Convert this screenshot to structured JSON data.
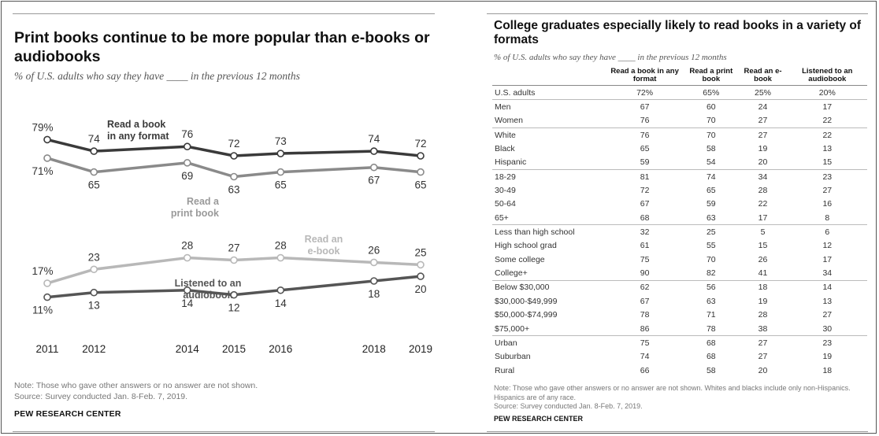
{
  "left": {
    "title": "Print books continue to be more popular than e-books or audiobooks",
    "subtitle": "% of U.S. adults who say they have ____ in the previous 12 months",
    "note": "Note: Those who gave other answers or no answer are not shown.",
    "source": "Source: Survey conducted Jan. 8-Feb. 7, 2019.",
    "brand": "PEW RESEARCH CENTER"
  },
  "right": {
    "title": "College graduates especially likely to read books in a variety of formats",
    "subtitle": "% of U.S. adults who say they have ____ in the previous 12 months",
    "note": "Note: Those who gave other answers or no answer are not shown. Whites and blacks include only non-Hispanics. Hispanics are of any race.",
    "source": "Source: Survey conducted Jan. 8-Feb. 7, 2019.",
    "brand": "PEW RESEARCH CENTER"
  },
  "chart_data": [
    {
      "type": "line",
      "title": "Print books continue to be more popular than e-books or audiobooks",
      "subtitle": "% of U.S. adults who say they have ____ in the previous 12 months",
      "x": [
        2011,
        2012,
        2014,
        2015,
        2016,
        2018,
        2019
      ],
      "ylim": [
        0,
        100
      ],
      "grid": false,
      "legend": "inline labels",
      "series": [
        {
          "name": "Read a book in any format",
          "values": [
            79,
            74,
            76,
            72,
            73,
            74,
            72
          ],
          "color": "#3a3a3a",
          "value_labels": [
            "79%",
            "74",
            "76",
            "72",
            "73",
            "74",
            "72"
          ]
        },
        {
          "name": "Read a print book",
          "values": [
            71,
            65,
            69,
            63,
            65,
            67,
            65
          ],
          "color": "#8a8a8a",
          "value_labels": [
            "71%",
            "65",
            "69",
            "63",
            "65",
            "67",
            "65"
          ]
        },
        {
          "name": "Read an e-book",
          "values": [
            17,
            23,
            28,
            27,
            28,
            26,
            25
          ],
          "color": "#b8b8b8",
          "value_labels": [
            "17%",
            "23",
            "28",
            "27",
            "28",
            "26",
            "25"
          ]
        },
        {
          "name": "Listened to an audiobook",
          "values": [
            11,
            13,
            14,
            12,
            14,
            18,
            20
          ],
          "color": "#555555",
          "value_labels": [
            "11%",
            "13",
            "14",
            "12",
            "14",
            "18",
            "20"
          ]
        }
      ]
    },
    {
      "type": "table",
      "title": "College graduates especially likely to read books in a variety of formats",
      "subtitle": "% of U.S. adults who say they have ____ in the previous 12 months",
      "columns": [
        "Read a book in any format",
        "Read a print book",
        "Read an e-book",
        "Listened to an audiobook"
      ],
      "rows": [
        {
          "label": "U.S. adults",
          "values": [
            "72%",
            "65%",
            "25%",
            "20%"
          ],
          "group_start": true
        },
        {
          "label": "Men",
          "values": [
            "67",
            "60",
            "24",
            "17"
          ],
          "group_start": true
        },
        {
          "label": "Women",
          "values": [
            "76",
            "70",
            "27",
            "22"
          ]
        },
        {
          "label": "White",
          "values": [
            "76",
            "70",
            "27",
            "22"
          ],
          "group_start": true
        },
        {
          "label": "Black",
          "values": [
            "65",
            "58",
            "19",
            "13"
          ]
        },
        {
          "label": "Hispanic",
          "values": [
            "59",
            "54",
            "20",
            "15"
          ]
        },
        {
          "label": "18-29",
          "values": [
            "81",
            "74",
            "34",
            "23"
          ],
          "group_start": true
        },
        {
          "label": "30-49",
          "values": [
            "72",
            "65",
            "28",
            "27"
          ]
        },
        {
          "label": "50-64",
          "values": [
            "67",
            "59",
            "22",
            "16"
          ]
        },
        {
          "label": "65+",
          "values": [
            "68",
            "63",
            "17",
            "8"
          ]
        },
        {
          "label": "Less than high school",
          "values": [
            "32",
            "25",
            "5",
            "6"
          ],
          "group_start": true
        },
        {
          "label": "High school grad",
          "values": [
            "61",
            "55",
            "15",
            "12"
          ]
        },
        {
          "label": "Some college",
          "values": [
            "75",
            "70",
            "26",
            "17"
          ]
        },
        {
          "label": "College+",
          "values": [
            "90",
            "82",
            "41",
            "34"
          ]
        },
        {
          "label": "Below $30,000",
          "values": [
            "62",
            "56",
            "18",
            "14"
          ],
          "group_start": true
        },
        {
          "label": "$30,000-$49,999",
          "values": [
            "67",
            "63",
            "19",
            "13"
          ]
        },
        {
          "label": "$50,000-$74,999",
          "values": [
            "78",
            "71",
            "28",
            "27"
          ]
        },
        {
          "label": "$75,000+",
          "values": [
            "86",
            "78",
            "38",
            "30"
          ]
        },
        {
          "label": "Urban",
          "values": [
            "75",
            "68",
            "27",
            "23"
          ],
          "group_start": true
        },
        {
          "label": "Suburban",
          "values": [
            "74",
            "68",
            "27",
            "19"
          ]
        },
        {
          "label": "Rural",
          "values": [
            "66",
            "58",
            "20",
            "18"
          ]
        }
      ]
    }
  ]
}
